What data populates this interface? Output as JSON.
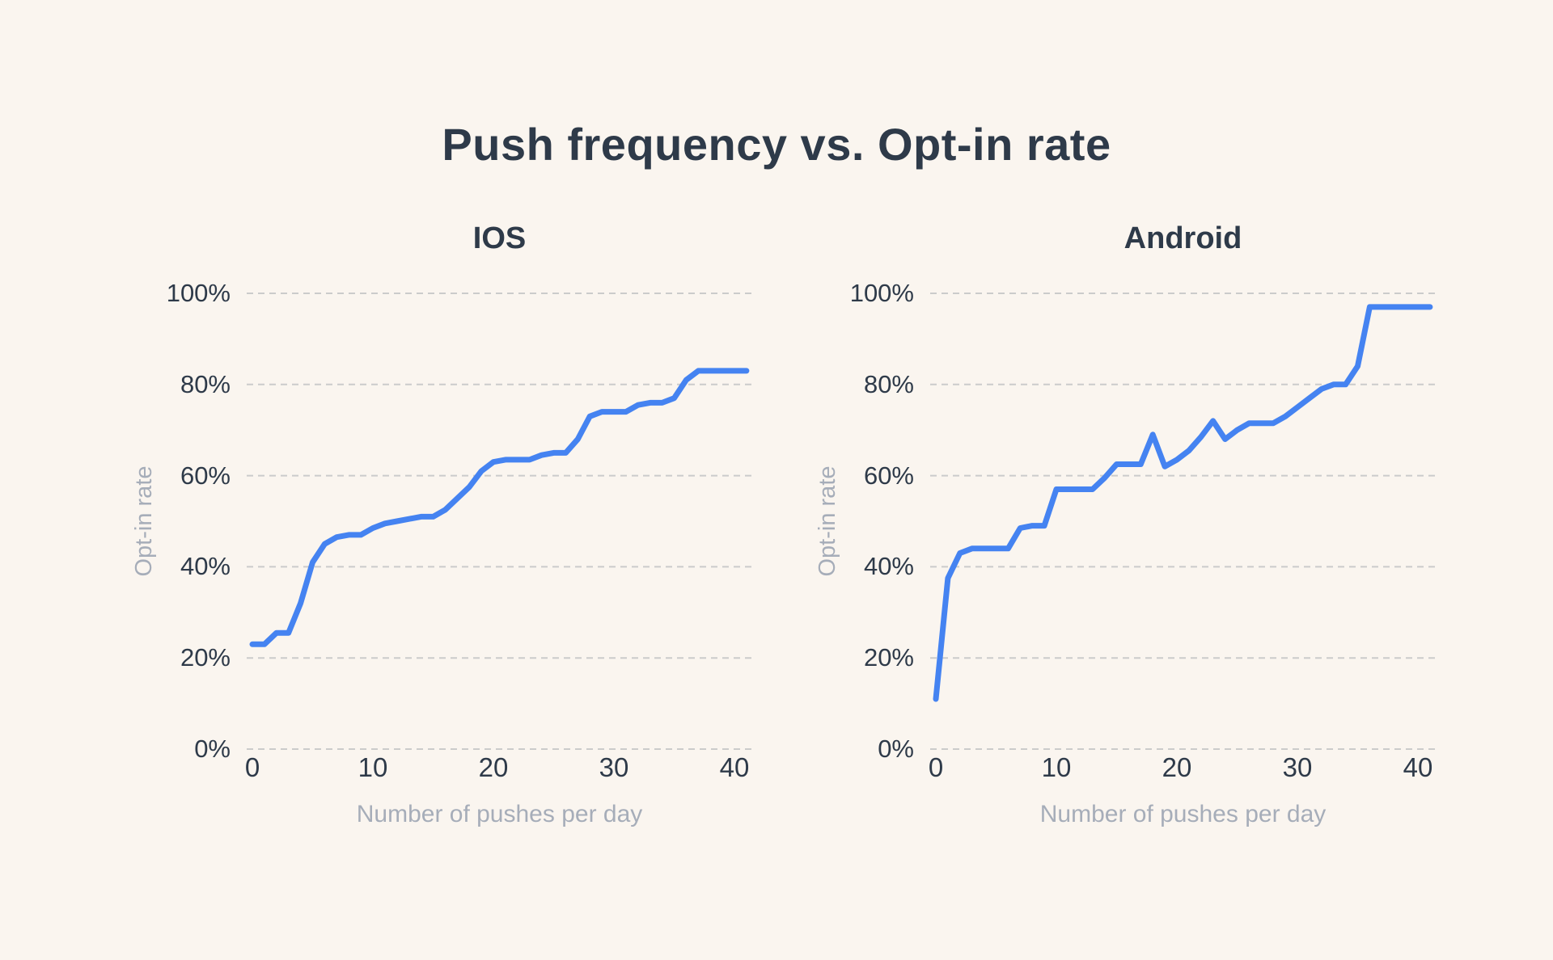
{
  "title": "Push frequency vs. Opt-in rate",
  "colors": {
    "background": "#faf5ef",
    "text_primary": "#2e3a49",
    "text_secondary": "#a6adb9",
    "gridline": "#cbcbcb",
    "line_blue": "#4583f1"
  },
  "chart_data": [
    {
      "type": "line",
      "title": "IOS",
      "xlabel": "Number of pushes per day",
      "ylabel": "Opt-in rate",
      "x_ticks": [
        "0",
        "10",
        "20",
        "30",
        "40"
      ],
      "y_ticks": [
        "100%",
        "80%",
        "60%",
        "40%",
        "20%",
        "0%"
      ],
      "xlim": [
        0,
        41
      ],
      "ylim": [
        0,
        100
      ],
      "grid": "horizontal-dashed",
      "legend": "none",
      "line_color": "#4583f1",
      "x": [
        0,
        1,
        2,
        3,
        4,
        5,
        6,
        7,
        8,
        9,
        10,
        11,
        12,
        13,
        14,
        15,
        16,
        17,
        18,
        19,
        20,
        21,
        22,
        23,
        24,
        25,
        26,
        27,
        28,
        29,
        30,
        31,
        32,
        33,
        34,
        35,
        36,
        37,
        38,
        39,
        40,
        41
      ],
      "values": [
        23,
        23,
        25.5,
        25.5,
        32,
        41,
        45,
        46.5,
        47,
        47,
        48.5,
        49.5,
        50,
        50.5,
        51,
        51,
        52.5,
        55,
        57.5,
        61,
        63,
        63.5,
        63.5,
        63.5,
        64.5,
        65,
        65,
        68,
        73,
        74,
        74,
        74,
        75.5,
        76,
        76,
        77,
        81,
        83,
        83,
        83,
        83,
        83
      ]
    },
    {
      "type": "line",
      "title": "Android",
      "xlabel": "Number of pushes per day",
      "ylabel": "Opt-in rate",
      "x_ticks": [
        "0",
        "10",
        "20",
        "30",
        "40"
      ],
      "y_ticks": [
        "100%",
        "80%",
        "60%",
        "40%",
        "20%",
        "0%"
      ],
      "xlim": [
        0,
        41
      ],
      "ylim": [
        0,
        100
      ],
      "grid": "horizontal-dashed",
      "legend": "none",
      "line_color": "#4583f1",
      "x": [
        0,
        1,
        2,
        3,
        4,
        5,
        6,
        7,
        8,
        9,
        10,
        11,
        12,
        13,
        14,
        15,
        16,
        17,
        18,
        19,
        20,
        21,
        22,
        23,
        24,
        25,
        26,
        27,
        28,
        29,
        30,
        31,
        32,
        33,
        34,
        35,
        36,
        37,
        38,
        39,
        40,
        41
      ],
      "values": [
        11,
        37.5,
        43,
        44,
        44,
        44,
        44,
        48.5,
        49,
        49,
        57,
        57,
        57,
        57,
        59.5,
        62.5,
        62.5,
        62.5,
        69,
        62,
        63.5,
        65.5,
        68.5,
        72,
        68,
        70,
        71.5,
        71.5,
        71.5,
        73,
        75,
        77,
        79,
        80,
        80,
        84,
        97,
        97,
        97,
        97,
        97,
        97
      ]
    }
  ]
}
